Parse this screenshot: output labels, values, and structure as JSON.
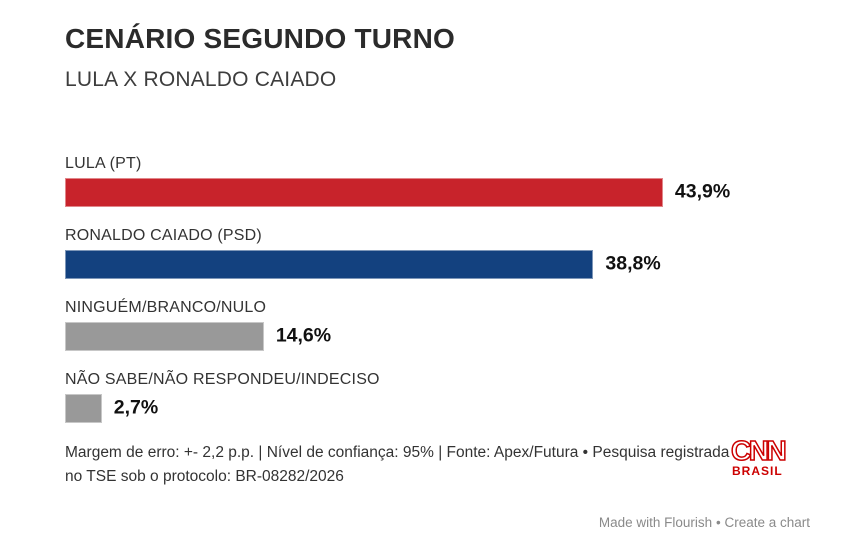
{
  "header": {
    "title": "CENÁRIO SEGUNDO TURNO",
    "subtitle": "LULA X RONALDO CAIADO"
  },
  "chart_data": {
    "type": "bar",
    "orientation": "horizontal",
    "categories": [
      "LULA (PT)",
      "RONALDO CAIADO (PSD)",
      "NINGUÉM/BRANCO/NULO",
      "NÃO SABE/NÃO RESPONDEU/INDECISO"
    ],
    "values": [
      43.9,
      38.8,
      14.6,
      2.7
    ],
    "value_labels": [
      "43,9%",
      "38,8%",
      "14,6%",
      "2,7%"
    ],
    "bar_colors": [
      "#c8232b",
      "#13417f",
      "#999999",
      "#999999"
    ],
    "xlim": [
      0,
      52.5
    ],
    "grid": false,
    "legend": "none",
    "value_label_position": "outside-end"
  },
  "footer": {
    "note": "Margem de erro: +- 2,2 p.p. | Nível de confiança: 95% | Fonte: Apex/Futura • Pesquisa registrada no TSE sob o protocolo: BR-08282/2026",
    "logo": {
      "brand": "CNN",
      "region": "BRASIL",
      "color": "#cc0000"
    }
  },
  "credit": {
    "made_with": "Made with Flourish",
    "separator": "•",
    "create": "Create a chart"
  }
}
